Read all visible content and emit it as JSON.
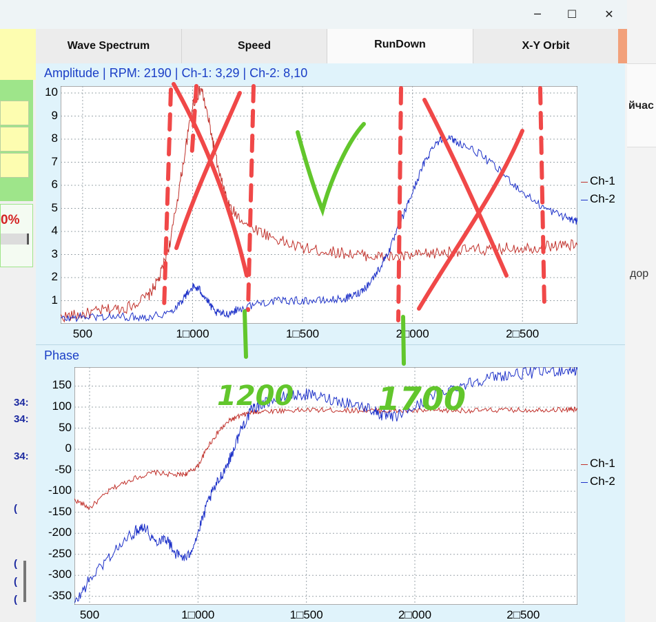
{
  "window": {
    "minimize_glyph": "─",
    "maximize_glyph": "☐",
    "close_glyph": "✕"
  },
  "tabs": [
    {
      "label": "Wave Spectrum",
      "active": false
    },
    {
      "label": "Speed",
      "active": false
    },
    {
      "label": "RunDown",
      "active": true
    },
    {
      "label": "X-Y Orbit",
      "active": false
    }
  ],
  "left_panel": {
    "percent_text": "0%",
    "row_labels": [
      "34:",
      "34:",
      "34:",
      "(",
      "(",
      "(",
      "("
    ]
  },
  "right_panel": {
    "snippet_top": "йчас",
    "snippet_mid": "дор"
  },
  "colors": {
    "ch1": "#c0302a",
    "ch2": "#1c30c8",
    "title": "#1a3ec6",
    "plot_bg": "#ffffff",
    "panel_bg": "#e0f3fb",
    "annot_red": "#f04848",
    "annot_green": "#62c62c"
  },
  "chart_data": [
    {
      "type": "line",
      "title": "Amplitude | RPM: 2190 | Ch-1: 3,29 | Ch-2: 8,10",
      "xlim": [
        400,
        2750
      ],
      "ylim": [
        0,
        10.3
      ],
      "x_ticks": [
        500,
        1000,
        1500,
        2000,
        2500
      ],
      "x_tick_labels": [
        "500",
        "1□000",
        "1□500",
        "2□000",
        "2□500"
      ],
      "y_ticks": [
        1,
        2,
        3,
        4,
        5,
        6,
        7,
        8,
        9,
        10
      ],
      "y_tick_labels": [
        "1",
        "2",
        "3",
        "4",
        "5",
        "6",
        "7",
        "8",
        "9",
        "10"
      ],
      "grid": true,
      "legend": "right",
      "series": [
        {
          "name": "Ch-1",
          "color": "#c0302a",
          "x": [
            400,
            500,
            600,
            700,
            800,
            850,
            900,
            950,
            1000,
            1040,
            1080,
            1120,
            1170,
            1250,
            1350,
            1450,
            1550,
            1650,
            1750,
            1850,
            1950,
            2050,
            2150,
            2250,
            2350,
            2450,
            2550,
            2650,
            2750
          ],
          "y": [
            0.3,
            0.4,
            0.6,
            0.7,
            1.2,
            2.0,
            3.6,
            6.5,
            9.5,
            10.2,
            8.5,
            6.5,
            5.0,
            4.3,
            3.8,
            3.4,
            3.2,
            3.1,
            3.0,
            2.9,
            2.9,
            3.0,
            3.1,
            3.2,
            3.2,
            3.3,
            3.3,
            3.4,
            3.4
          ]
        },
        {
          "name": "Ch-2",
          "color": "#1c30c8",
          "x": [
            400,
            500,
            600,
            700,
            800,
            900,
            950,
            1000,
            1030,
            1060,
            1100,
            1150,
            1200,
            1300,
            1400,
            1500,
            1600,
            1700,
            1750,
            1800,
            1850,
            1900,
            1950,
            2000,
            2050,
            2100,
            2150,
            2200,
            2300,
            2400,
            2500,
            2600,
            2700,
            2750
          ],
          "y": [
            0.2,
            0.3,
            0.3,
            0.3,
            0.3,
            0.5,
            1.0,
            1.6,
            1.5,
            1.1,
            0.5,
            0.4,
            0.6,
            0.9,
            1.0,
            1.0,
            1.0,
            1.1,
            1.3,
            1.7,
            2.4,
            3.3,
            4.5,
            5.7,
            6.9,
            7.8,
            8.1,
            7.9,
            7.4,
            6.6,
            5.7,
            5.0,
            4.6,
            4.4
          ]
        }
      ]
    },
    {
      "type": "line",
      "title": "Phase",
      "xlim": [
        430,
        2750
      ],
      "ylim": [
        -370,
        195
      ],
      "x_ticks": [
        500,
        1000,
        1500,
        2000,
        2500
      ],
      "x_tick_labels": [
        "500",
        "1□000",
        "1□500",
        "2□000",
        "2□500"
      ],
      "y_ticks": [
        150,
        100,
        50,
        0,
        -50,
        -100,
        -150,
        -200,
        -250,
        -300,
        -350
      ],
      "y_tick_labels": [
        "150",
        "100",
        "50",
        "0",
        "-50",
        "-100",
        "-150",
        "-200",
        "-250",
        "-300",
        "-350"
      ],
      "grid": true,
      "legend": "right",
      "series": [
        {
          "name": "Ch-1",
          "color": "#c0302a",
          "x": [
            430,
            500,
            600,
            700,
            800,
            900,
            950,
            1000,
            1050,
            1100,
            1150,
            1200,
            1250,
            1300,
            1400,
            1500,
            1600,
            1700,
            1800,
            1900,
            2000,
            2100,
            2200,
            2300,
            2400,
            2500,
            2600,
            2700,
            2750
          ],
          "y": [
            -120,
            -140,
            -95,
            -70,
            -55,
            -62,
            -58,
            -40,
            10,
            45,
            70,
            80,
            88,
            90,
            92,
            93,
            93,
            92,
            92,
            91,
            91,
            92,
            92,
            92,
            93,
            93,
            94,
            94,
            94
          ]
        },
        {
          "name": "Ch-2",
          "color": "#1c30c8",
          "x": [
            430,
            500,
            600,
            700,
            750,
            800,
            850,
            900,
            950,
            1000,
            1050,
            1100,
            1150,
            1200,
            1250,
            1300,
            1400,
            1500,
            1600,
            1700,
            1800,
            1850,
            1900,
            2000,
            2100,
            2200,
            2300,
            2400,
            2500,
            2600,
            2700,
            2750
          ],
          "y": [
            -370,
            -310,
            -250,
            -200,
            -180,
            -220,
            -210,
            -250,
            -260,
            -200,
            -120,
            -70,
            -20,
            50,
            95,
            110,
            125,
            130,
            120,
            110,
            95,
            80,
            75,
            100,
            130,
            150,
            165,
            175,
            180,
            185,
            188,
            188
          ]
        }
      ]
    }
  ],
  "annotations": {
    "label_1200": "1200",
    "label_1700": "1700"
  }
}
